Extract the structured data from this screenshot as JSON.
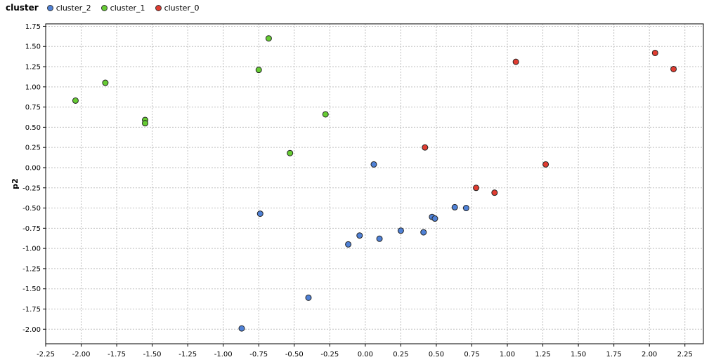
{
  "chart_data": {
    "type": "scatter",
    "legend_title": "cluster",
    "legend_position": "top-left",
    "xlabel": "",
    "ylabel": "p2",
    "xlim": [
      -2.25,
      2.38
    ],
    "ylim": [
      -2.18,
      1.78
    ],
    "xticks": [
      "-2.25",
      "-2.00",
      "-1.75",
      "-1.50",
      "-1.25",
      "-1.00",
      "-0.75",
      "-0.50",
      "-0.25",
      "0.00",
      "0.25",
      "0.50",
      "0.75",
      "1.00",
      "1.25",
      "1.50",
      "1.75",
      "2.00",
      "2.25"
    ],
    "yticks": [
      "1.75",
      "1.50",
      "1.25",
      "1.00",
      "0.75",
      "0.50",
      "0.25",
      "0.00",
      "-0.25",
      "-0.50",
      "-0.75",
      "-1.00",
      "-1.25",
      "-1.50",
      "-1.75",
      "-2.00"
    ],
    "grid": true,
    "series": [
      {
        "name": "cluster_2",
        "color": "#4f81d6",
        "points": [
          [
            0.06,
            0.04
          ],
          [
            -0.74,
            -0.57
          ],
          [
            -0.12,
            -0.95
          ],
          [
            -0.04,
            -0.84
          ],
          [
            0.1,
            -0.88
          ],
          [
            0.25,
            -0.78
          ],
          [
            0.41,
            -0.8
          ],
          [
            0.47,
            -0.61
          ],
          [
            0.49,
            -0.63
          ],
          [
            0.63,
            -0.49
          ],
          [
            0.71,
            -0.5
          ],
          [
            -0.4,
            -1.61
          ],
          [
            -0.87,
            -1.99
          ]
        ]
      },
      {
        "name": "cluster_1",
        "color": "#66cc33",
        "points": [
          [
            -2.04,
            0.83
          ],
          [
            -1.83,
            1.05
          ],
          [
            -1.55,
            0.59
          ],
          [
            -1.55,
            0.55
          ],
          [
            -0.68,
            1.6
          ],
          [
            -0.75,
            1.21
          ],
          [
            -0.28,
            0.66
          ],
          [
            -0.53,
            0.18
          ]
        ]
      },
      {
        "name": "cluster_0",
        "color": "#e03c31",
        "points": [
          [
            0.42,
            0.25
          ],
          [
            1.06,
            1.31
          ],
          [
            2.04,
            1.42
          ],
          [
            2.17,
            1.22
          ],
          [
            1.27,
            0.04
          ],
          [
            0.78,
            -0.25
          ],
          [
            0.91,
            -0.31
          ]
        ]
      }
    ]
  }
}
